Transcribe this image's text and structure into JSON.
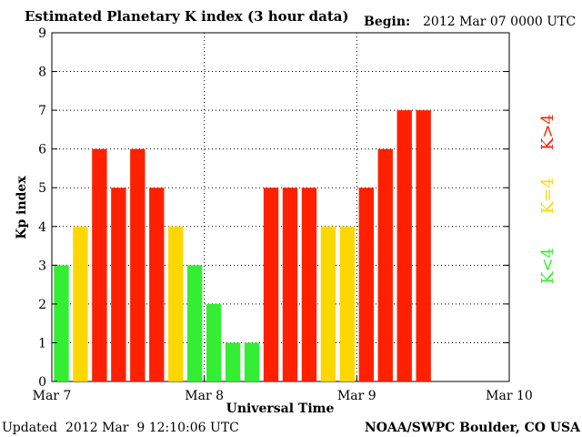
{
  "header": {
    "title": "Estimated Planetary K index (3 hour data)",
    "begin_label": "Begin:",
    "begin_value": "2012 Mar 07 0000 UTC"
  },
  "footer": {
    "updated_label": "Updated",
    "updated_value": "2012 Mar  9 12:10:06 UTC",
    "source": "NOAA/SWPC Boulder, CO USA"
  },
  "legend": {
    "green": "K<4",
    "yellow": "K=4",
    "red": "K>4"
  },
  "colors": {
    "green": "#33ee33",
    "yellow": "#ffd700",
    "red": "#ff2000",
    "grid": "#000000"
  },
  "chart_data": {
    "type": "bar",
    "title": "Estimated Planetary K index (3 hour data)",
    "xlabel": "Universal Time",
    "ylabel": "Kp index",
    "ylim": [
      0,
      9
    ],
    "yticks": [
      "0",
      "1",
      "2",
      "3",
      "4",
      "5",
      "6",
      "7",
      "8",
      "9"
    ],
    "xticks": [
      "Mar 7",
      "Mar 8",
      "Mar 9",
      "Mar 10"
    ],
    "bars_per_day": 8,
    "days": 3,
    "values": [
      3,
      4,
      6,
      5,
      6,
      5,
      4,
      3,
      2,
      1,
      1,
      5,
      5,
      5,
      4,
      4,
      5,
      6,
      7,
      7
    ],
    "grid": true,
    "legend_position": "right"
  }
}
